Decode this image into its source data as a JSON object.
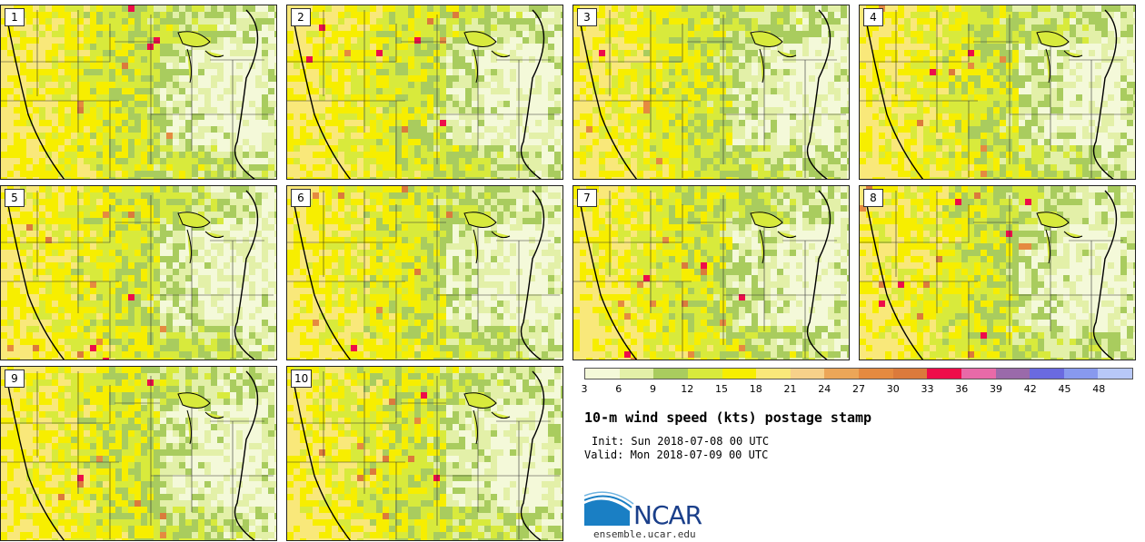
{
  "panels": [
    {
      "label": "1"
    },
    {
      "label": "2"
    },
    {
      "label": "3"
    },
    {
      "label": "4"
    },
    {
      "label": "5"
    },
    {
      "label": "6"
    },
    {
      "label": "7"
    },
    {
      "label": "8"
    },
    {
      "label": "9"
    },
    {
      "label": "10"
    }
  ],
  "legend": {
    "ticks": [
      "3",
      "6",
      "9",
      "12",
      "15",
      "18",
      "21",
      "24",
      "27",
      "30",
      "33",
      "36",
      "39",
      "42",
      "45",
      "48"
    ],
    "colors": [
      "#f4f9d9",
      "#e3f0a8",
      "#a9cc5e",
      "#d8ea3c",
      "#f7ee00",
      "#f9e87a",
      "#f7d18a",
      "#eca658",
      "#e58a40",
      "#db7a3c",
      "#ee0c4a",
      "#e86aa8",
      "#9a6aaa",
      "#6a6ae0",
      "#8899ee",
      "#b8c8f8"
    ]
  },
  "title": "10-m wind speed (kts) postage stamp",
  "init": "Init: Sun 2018-07-08 00 UTC",
  "valid": "Valid: Mon 2018-07-09 00 UTC",
  "logo": {
    "text": "NCAR",
    "url": "ensemble.ucar.edu"
  }
}
